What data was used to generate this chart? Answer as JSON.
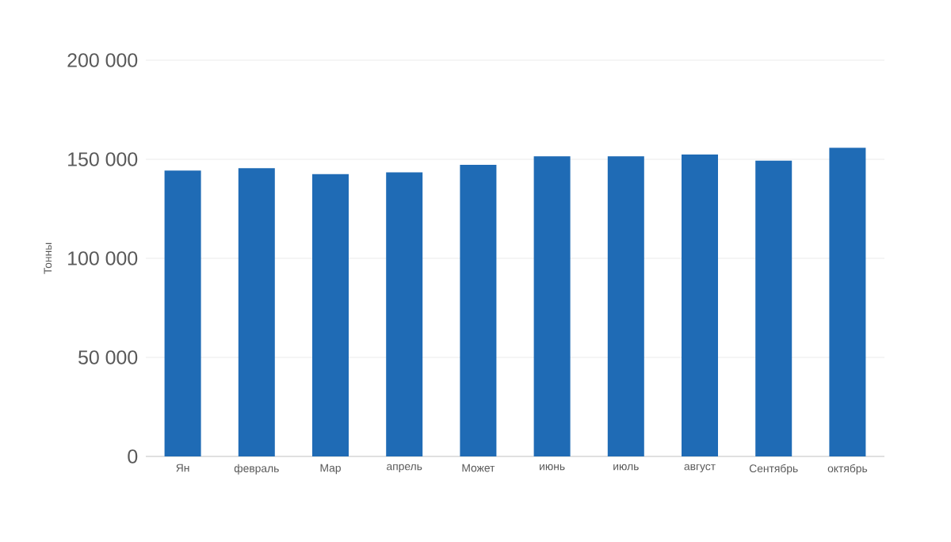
{
  "chart_data": {
    "type": "bar",
    "ylabel": "Тонны",
    "categories": [
      "Ян",
      "февраль",
      "Мар",
      "апрель",
      "Может",
      "июнь",
      "июль",
      "август",
      "Сентябрь",
      "октябрь"
    ],
    "values": [
      144300,
      145500,
      142500,
      143400,
      147200,
      151500,
      151500,
      152400,
      149300,
      155800
    ],
    "color": "#1f6bb5",
    "ylim": [
      0,
      200000
    ],
    "yticks": [
      {
        "value": 0,
        "label": "0"
      },
      {
        "value": 50000,
        "label": "50 000"
      },
      {
        "value": 100000,
        "label": "100 000"
      },
      {
        "value": 150000,
        "label": "150 000"
      },
      {
        "value": 200000,
        "label": "200 000"
      }
    ],
    "grid": "y"
  }
}
